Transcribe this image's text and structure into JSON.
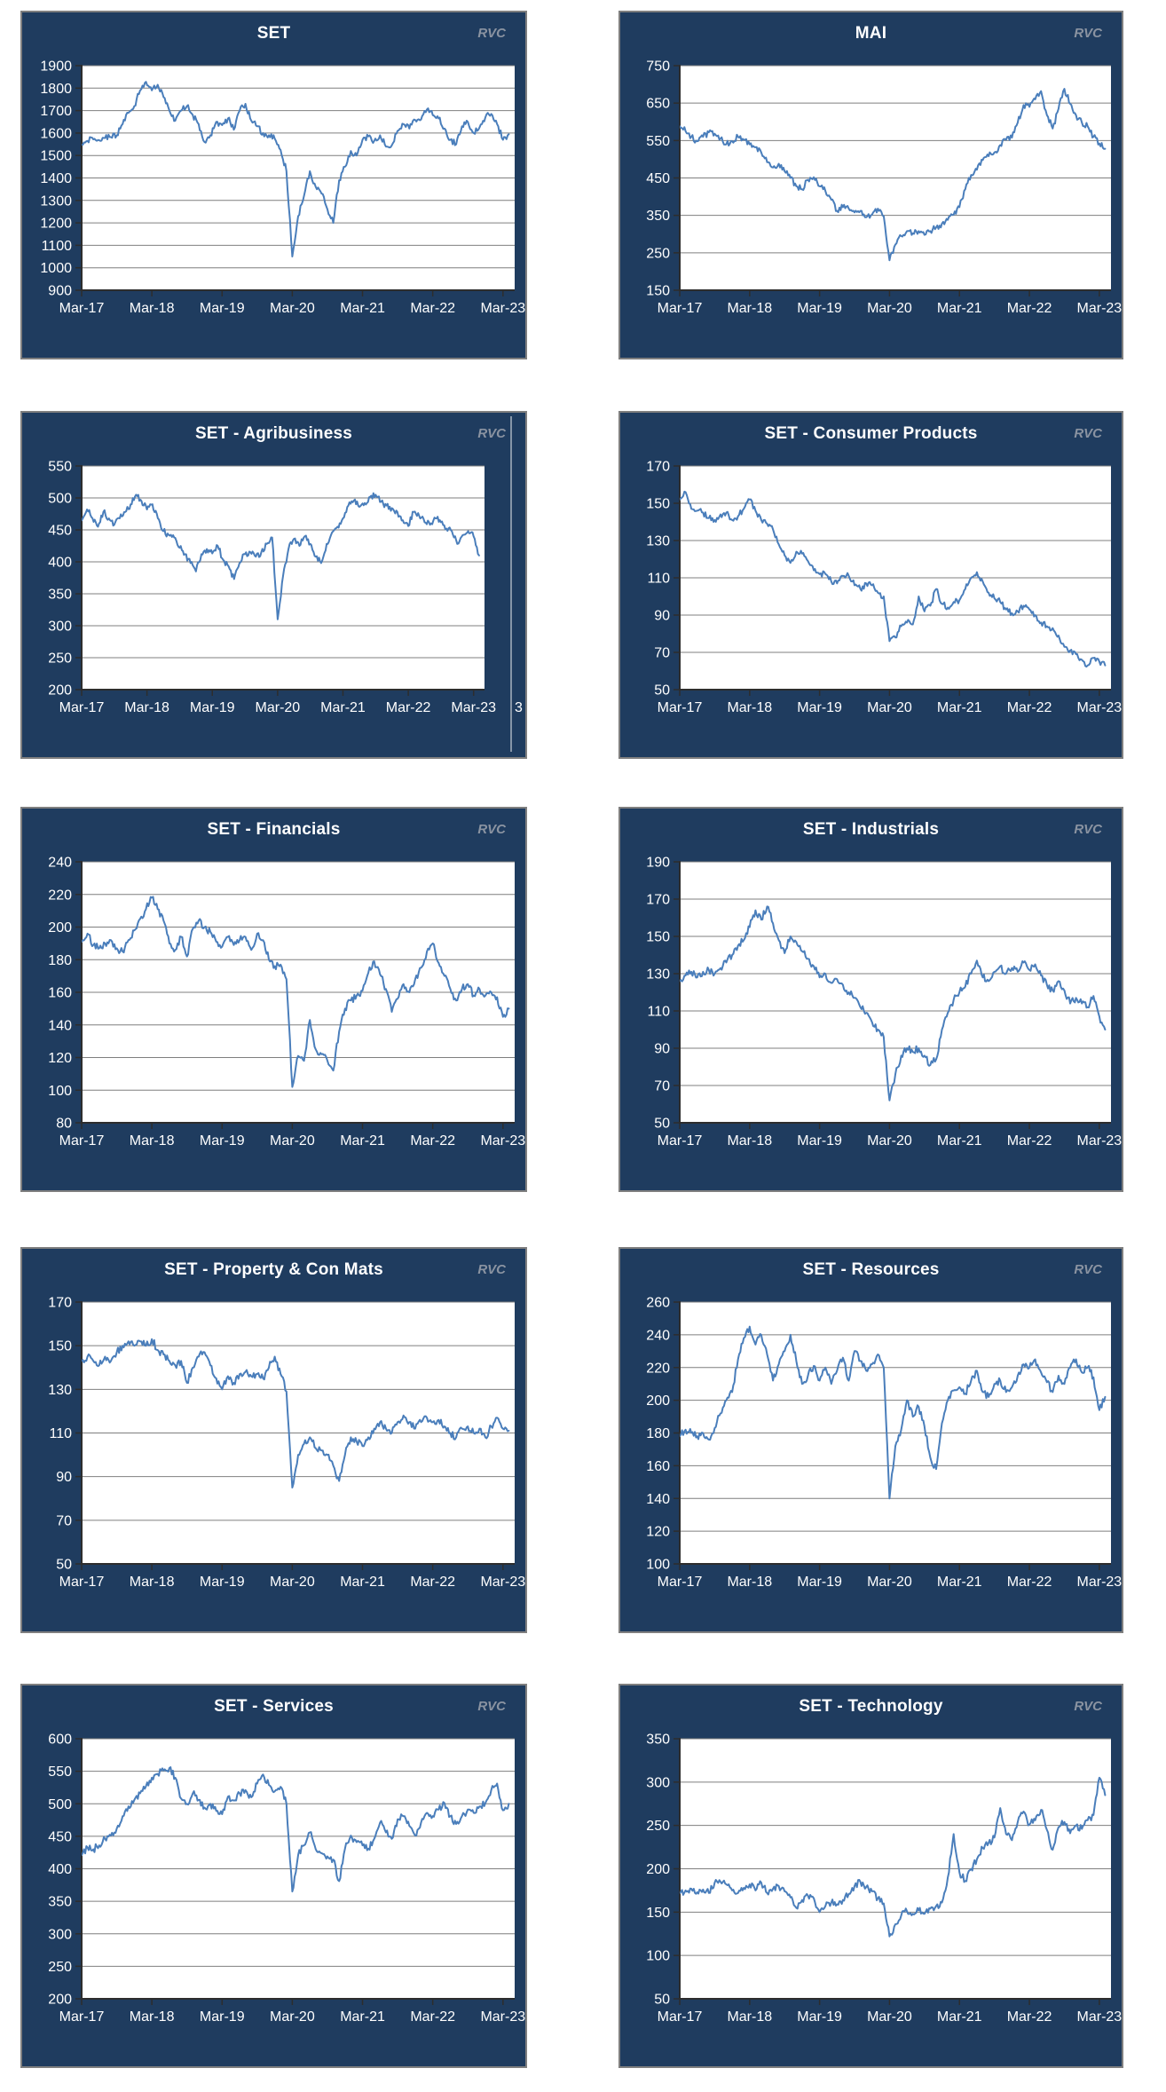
{
  "watermark": "RVC",
  "style": {
    "panel_bg": "#1f3c5f",
    "panel_border": "#7f7f7f",
    "line_color": "#4a7ebb",
    "grid_color": "#7f7f7f",
    "label_color": "#ffffff",
    "watermark_color": "#8a93a1",
    "page_bg": "#ffffff"
  },
  "chart_data": [
    {
      "type": "line",
      "title": "SET",
      "slug": "set",
      "xlabel": "",
      "ylabel": "",
      "grid": true,
      "legend": false,
      "ylim": [
        900,
        1900
      ],
      "y_tick_labels": [
        "900",
        "1000",
        "1100",
        "1200",
        "1300",
        "1400",
        "1500",
        "1600",
        "1700",
        "1800",
        "1900"
      ],
      "x_ticks": [
        "Mar-17",
        "Mar-18",
        "Mar-19",
        "Mar-20",
        "Mar-21",
        "Mar-22",
        "Mar-23"
      ],
      "x_unit": "monthly from Mar-17",
      "values": [
        1548,
        1565,
        1572,
        1568,
        1578,
        1582,
        1590,
        1640,
        1690,
        1720,
        1790,
        1828,
        1790,
        1815,
        1760,
        1700,
        1655,
        1700,
        1720,
        1680,
        1640,
        1560,
        1590,
        1650,
        1635,
        1665,
        1615,
        1700,
        1730,
        1655,
        1630,
        1600,
        1590,
        1575,
        1525,
        1430,
        1050,
        1230,
        1320,
        1430,
        1360,
        1330,
        1260,
        1200,
        1390,
        1450,
        1520,
        1500,
        1570,
        1585,
        1565,
        1590,
        1540,
        1545,
        1610,
        1640,
        1620,
        1658,
        1660,
        1705,
        1680,
        1665,
        1620,
        1570,
        1550,
        1630,
        1650,
        1600,
        1625,
        1670,
        1685,
        1640,
        1570,
        1595
      ]
    },
    {
      "type": "line",
      "title": "MAI",
      "slug": "mai",
      "xlabel": "",
      "ylabel": "",
      "grid": true,
      "legend": false,
      "ylim": [
        150,
        750
      ],
      "y_tick_labels": [
        "150",
        "250",
        "350",
        "450",
        "550",
        "650",
        "750"
      ],
      "x_ticks": [
        "Mar-17",
        "Mar-18",
        "Mar-19",
        "Mar-20",
        "Mar-21",
        "Mar-22",
        "Mar-23"
      ],
      "x_unit": "monthly from Mar-17",
      "values": [
        588,
        575,
        560,
        548,
        560,
        572,
        568,
        555,
        540,
        548,
        560,
        552,
        540,
        532,
        518,
        492,
        478,
        488,
        468,
        450,
        428,
        420,
        445,
        452,
        428,
        415,
        392,
        362,
        372,
        368,
        358,
        362,
        345,
        352,
        368,
        348,
        230,
        272,
        295,
        308,
        302,
        308,
        298,
        308,
        318,
        328,
        338,
        352,
        372,
        420,
        458,
        472,
        498,
        508,
        518,
        538,
        552,
        558,
        598,
        645,
        640,
        660,
        682,
        618,
        582,
        635,
        688,
        648,
        618,
        598,
        588,
        560,
        542,
        528
      ]
    },
    {
      "type": "line",
      "title": "SET - Agribusiness",
      "slug": "set-agribusiness",
      "xlabel": "",
      "ylabel": "",
      "grid": true,
      "legend": false,
      "ylim": [
        200,
        550
      ],
      "y_tick_labels": [
        "200",
        "250",
        "300",
        "350",
        "400",
        "450",
        "500",
        "550"
      ],
      "x_ticks": [
        "Mar-17",
        "Mar-18",
        "Mar-19",
        "Mar-20",
        "Mar-21",
        "Mar-22",
        "Mar-23"
      ],
      "x_unit": "monthly from Mar-17",
      "artifact_text": "3",
      "values": [
        465,
        482,
        468,
        455,
        478,
        468,
        458,
        468,
        478,
        490,
        505,
        495,
        482,
        490,
        468,
        448,
        442,
        438,
        422,
        412,
        398,
        385,
        412,
        420,
        413,
        425,
        403,
        393,
        373,
        398,
        412,
        415,
        408,
        415,
        428,
        438,
        310,
        378,
        420,
        436,
        425,
        440,
        428,
        408,
        398,
        428,
        446,
        455,
        468,
        488,
        496,
        486,
        492,
        502,
        505,
        494,
        488,
        484,
        478,
        465,
        456,
        478,
        472,
        462,
        458,
        468,
        462,
        452,
        448,
        428,
        442,
        448,
        440,
        410
      ]
    },
    {
      "type": "line",
      "title": "SET - Consumer Products",
      "slug": "set-consumer-products",
      "xlabel": "",
      "ylabel": "",
      "grid": true,
      "legend": false,
      "ylim": [
        50,
        170
      ],
      "y_tick_labels": [
        "50",
        "70",
        "90",
        "110",
        "130",
        "150",
        "170"
      ],
      "x_ticks": [
        "Mar-17",
        "Mar-18",
        "Mar-19",
        "Mar-20",
        "Mar-21",
        "Mar-22",
        "Mar-23"
      ],
      "x_unit": "monthly from Mar-17",
      "values": [
        152,
        156,
        147,
        146,
        145,
        142,
        141,
        144,
        145,
        141,
        143,
        147,
        152,
        146,
        141,
        139,
        136,
        128,
        122,
        118,
        124,
        123,
        119,
        114,
        112,
        112,
        108,
        107,
        111,
        111,
        106,
        104,
        107,
        106,
        102,
        100,
        76,
        78,
        84,
        86,
        85,
        100,
        92,
        95,
        104,
        96,
        94,
        97,
        98,
        104,
        110,
        113,
        108,
        102,
        99,
        97,
        93,
        91,
        92,
        95,
        93,
        90,
        86,
        84,
        83,
        79,
        73,
        71,
        69,
        66,
        63,
        67,
        65,
        63
      ]
    },
    {
      "type": "line",
      "title": "SET - Financials",
      "slug": "set-financials",
      "xlabel": "",
      "ylabel": "",
      "grid": true,
      "legend": false,
      "ylim": [
        80,
        240
      ],
      "y_tick_labels": [
        "80",
        "100",
        "120",
        "140",
        "160",
        "180",
        "200",
        "220",
        "240"
      ],
      "x_ticks": [
        "Mar-17",
        "Mar-18",
        "Mar-19",
        "Mar-20",
        "Mar-21",
        "Mar-22",
        "Mar-23"
      ],
      "x_unit": "monthly from Mar-17",
      "values": [
        191,
        196,
        189,
        187,
        190,
        192,
        187,
        185,
        192,
        198,
        205,
        211,
        218,
        211,
        204,
        190,
        186,
        194,
        182,
        199,
        204,
        200,
        197,
        191,
        188,
        194,
        189,
        192,
        194,
        186,
        196,
        192,
        180,
        176,
        177,
        168,
        102,
        121,
        118,
        143,
        125,
        122,
        118,
        112,
        136,
        150,
        155,
        158,
        161,
        172,
        179,
        171,
        162,
        148,
        156,
        165,
        160,
        168,
        175,
        185,
        190,
        178,
        170,
        162,
        155,
        162,
        165,
        158,
        162,
        158,
        160,
        157,
        145,
        150
      ]
    },
    {
      "type": "line",
      "title": "SET - Industrials",
      "slug": "set-industrials",
      "xlabel": "",
      "ylabel": "",
      "grid": true,
      "legend": false,
      "ylim": [
        50,
        190
      ],
      "y_tick_labels": [
        "50",
        "70",
        "90",
        "110",
        "130",
        "150",
        "170",
        "190"
      ],
      "x_ticks": [
        "Mar-17",
        "Mar-18",
        "Mar-19",
        "Mar-20",
        "Mar-21",
        "Mar-22",
        "Mar-23"
      ],
      "x_unit": "monthly from Mar-17",
      "values": [
        126,
        129,
        131,
        128,
        131,
        132,
        130,
        133,
        136,
        140,
        145,
        148,
        155,
        164,
        159,
        166,
        157,
        148,
        141,
        150,
        147,
        142,
        138,
        134,
        128,
        130,
        125,
        127,
        124,
        120,
        117,
        112,
        109,
        104,
        100,
        96,
        62,
        76,
        86,
        90,
        88,
        90,
        86,
        81,
        84,
        100,
        109,
        116,
        120,
        123,
        130,
        137,
        128,
        126,
        131,
        134,
        130,
        133,
        131,
        136,
        132,
        135,
        129,
        124,
        121,
        126,
        121,
        114,
        117,
        114,
        112,
        118,
        107,
        100
      ]
    },
    {
      "type": "line",
      "title": "SET - Property & Con Mats",
      "slug": "set-property-con-mats",
      "xlabel": "",
      "ylabel": "",
      "grid": true,
      "legend": false,
      "ylim": [
        50,
        170
      ],
      "y_tick_labels": [
        "50",
        "70",
        "90",
        "110",
        "130",
        "150",
        "170"
      ],
      "x_ticks": [
        "Mar-17",
        "Mar-18",
        "Mar-19",
        "Mar-20",
        "Mar-21",
        "Mar-22",
        "Mar-23"
      ],
      "x_unit": "monthly from Mar-17",
      "values": [
        143,
        145,
        143,
        141,
        145,
        143,
        147,
        150,
        152,
        150,
        152,
        150,
        153,
        148,
        146,
        143,
        141,
        143,
        133,
        140,
        145,
        147,
        141,
        135,
        130,
        136,
        133,
        137,
        138,
        136,
        137,
        135,
        140,
        145,
        137,
        129,
        85,
        100,
        105,
        108,
        103,
        102,
        100,
        95,
        88,
        100,
        108,
        106,
        104,
        108,
        112,
        115,
        112,
        110,
        115,
        118,
        115,
        112,
        115,
        117,
        115,
        116,
        113,
        110,
        108,
        112,
        113,
        110,
        112,
        108,
        113,
        117,
        112,
        111
      ]
    },
    {
      "type": "line",
      "title": "SET - Resources",
      "slug": "set-resources",
      "xlabel": "",
      "ylabel": "",
      "grid": true,
      "legend": false,
      "ylim": [
        100,
        260
      ],
      "y_tick_labels": [
        "100",
        "120",
        "140",
        "160",
        "180",
        "200",
        "220",
        "240",
        "260"
      ],
      "x_ticks": [
        "Mar-17",
        "Mar-18",
        "Mar-19",
        "Mar-20",
        "Mar-21",
        "Mar-22",
        "Mar-23"
      ],
      "x_unit": "monthly from Mar-17",
      "values": [
        178,
        182,
        180,
        178,
        180,
        176,
        183,
        192,
        200,
        205,
        225,
        238,
        245,
        234,
        240,
        228,
        212,
        222,
        230,
        240,
        224,
        210,
        215,
        221,
        212,
        220,
        210,
        218,
        226,
        212,
        230,
        224,
        218,
        222,
        228,
        220,
        140,
        172,
        182,
        200,
        190,
        196,
        184,
        165,
        158,
        186,
        200,
        206,
        208,
        204,
        212,
        218,
        205,
        202,
        210,
        212,
        205,
        208,
        215,
        222,
        220,
        225,
        217,
        211,
        205,
        215,
        210,
        220,
        225,
        217,
        220,
        214,
        194,
        202
      ]
    },
    {
      "type": "line",
      "title": "SET - Services",
      "slug": "set-services",
      "xlabel": "",
      "ylabel": "",
      "grid": true,
      "legend": false,
      "ylim": [
        200,
        600
      ],
      "y_tick_labels": [
        "200",
        "250",
        "300",
        "350",
        "400",
        "450",
        "500",
        "550",
        "600"
      ],
      "x_ticks": [
        "Mar-17",
        "Mar-18",
        "Mar-19",
        "Mar-20",
        "Mar-21",
        "Mar-22",
        "Mar-23"
      ],
      "x_unit": "monthly from Mar-17",
      "values": [
        421,
        433,
        430,
        436,
        446,
        451,
        462,
        481,
        496,
        506,
        516,
        527,
        540,
        546,
        551,
        555,
        540,
        508,
        500,
        516,
        506,
        494,
        500,
        489,
        484,
        511,
        505,
        516,
        521,
        510,
        531,
        545,
        529,
        519,
        526,
        500,
        365,
        421,
        436,
        456,
        430,
        424,
        419,
        414,
        381,
        431,
        451,
        441,
        436,
        431,
        446,
        471,
        456,
        446,
        476,
        481,
        466,
        451,
        471,
        486,
        481,
        491,
        501,
        481,
        469,
        481,
        491,
        486,
        496,
        501,
        521,
        531,
        490,
        500
      ]
    },
    {
      "type": "line",
      "title": "SET - Technology",
      "slug": "set-technology",
      "xlabel": "",
      "ylabel": "",
      "grid": true,
      "legend": false,
      "ylim": [
        50,
        350
      ],
      "y_tick_labels": [
        "50",
        "100",
        "150",
        "200",
        "250",
        "300",
        "350"
      ],
      "x_ticks": [
        "Mar-17",
        "Mar-18",
        "Mar-19",
        "Mar-20",
        "Mar-21",
        "Mar-22",
        "Mar-23"
      ],
      "x_unit": "monthly from Mar-17",
      "values": [
        172,
        175,
        177,
        173,
        176,
        172,
        184,
        185,
        182,
        175,
        172,
        178,
        182,
        175,
        184,
        172,
        177,
        180,
        174,
        167,
        155,
        164,
        169,
        166,
        150,
        157,
        161,
        159,
        164,
        171,
        180,
        185,
        179,
        174,
        166,
        160,
        122,
        136,
        146,
        151,
        148,
        152,
        148,
        154,
        157,
        161,
        190,
        240,
        196,
        186,
        200,
        211,
        224,
        230,
        236,
        270,
        240,
        233,
        254,
        266,
        251,
        256,
        268,
        245,
        222,
        248,
        254,
        241,
        250,
        246,
        256,
        262,
        305,
        285
      ]
    }
  ]
}
